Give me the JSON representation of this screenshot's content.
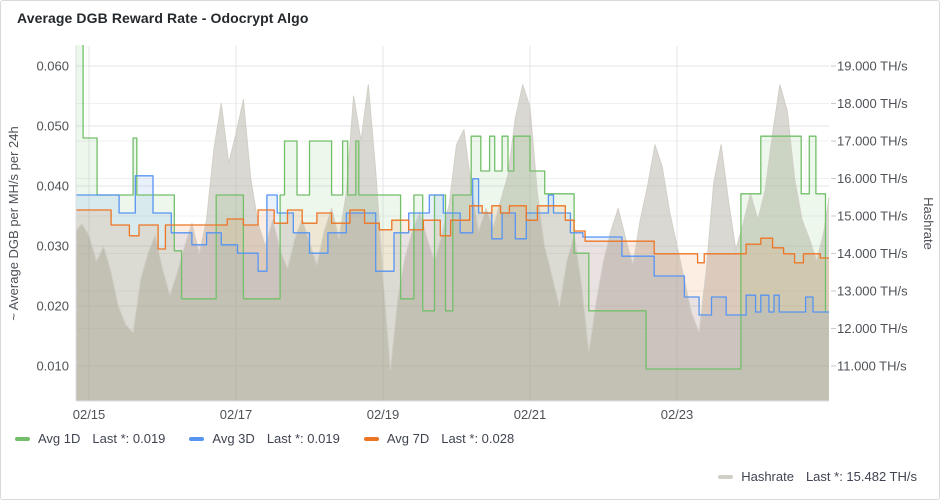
{
  "panel": {
    "title": "Average DGB Reward Rate - Odocrypt Algo"
  },
  "chart_data": {
    "type": "line",
    "title": "Average DGB Reward Rate - Odocrypt Algo",
    "grid": true,
    "legend_position": "bottom",
    "x_axis": {
      "unit": "days since 02/15",
      "range": [
        -0.177,
        10.068
      ],
      "ticks": [
        {
          "t": 0,
          "label": "02/15"
        },
        {
          "t": 2,
          "label": "02/17"
        },
        {
          "t": 4,
          "label": "02/19"
        },
        {
          "t": 6,
          "label": "02/21"
        },
        {
          "t": 8,
          "label": "02/23"
        }
      ]
    },
    "y_left": {
      "label": "~ Average DGB per MH/s per 24h",
      "range": [
        0.00417,
        0.06333
      ],
      "ticks": [
        {
          "v": 0.06,
          "label": "0.060"
        },
        {
          "v": 0.05,
          "label": "0.050"
        },
        {
          "v": 0.04,
          "label": "0.040"
        },
        {
          "v": 0.03,
          "label": "0.030"
        },
        {
          "v": 0.02,
          "label": "0.020"
        },
        {
          "v": 0.01,
          "label": "0.010"
        }
      ]
    },
    "y_right": {
      "label": "Hashrate",
      "range": [
        10.067,
        19.533
      ],
      "ticks": [
        {
          "v": 19,
          "label": "19.000 TH/s"
        },
        {
          "v": 18,
          "label": "18.000 TH/s"
        },
        {
          "v": 17,
          "label": "17.000 TH/s"
        },
        {
          "v": 16,
          "label": "16.000 TH/s"
        },
        {
          "v": 15,
          "label": "15.000 TH/s"
        },
        {
          "v": 14,
          "label": "14.000 TH/s"
        },
        {
          "v": 13,
          "label": "13.000 TH/s"
        },
        {
          "v": 12,
          "label": "12.000 TH/s"
        },
        {
          "v": 11,
          "label": "11.000 TH/s"
        }
      ]
    },
    "series": [
      {
        "name": "Hashrate",
        "last_label": "Last *: 15.482 TH/s",
        "last_value": 15.482,
        "color": "#d2cfc7",
        "fill": "#b6b2a6",
        "fill_opacity": 0.5,
        "axis": "right",
        "mode": "linear",
        "points": [
          [
            -0.18,
            14.6
          ],
          [
            -0.1,
            14.8
          ],
          [
            0,
            14.5
          ],
          [
            0.1,
            13.8
          ],
          [
            0.2,
            14.2
          ],
          [
            0.3,
            13.5
          ],
          [
            0.4,
            12.6
          ],
          [
            0.5,
            12.1
          ],
          [
            0.6,
            11.9
          ],
          [
            0.7,
            13.3
          ],
          [
            0.8,
            14.0
          ],
          [
            0.9,
            14.5
          ],
          [
            1.0,
            13.6
          ],
          [
            1.1,
            12.9
          ],
          [
            1.2,
            13.5
          ],
          [
            1.3,
            14.2
          ],
          [
            1.4,
            14.8
          ],
          [
            1.5,
            14.0
          ],
          [
            1.6,
            14.9
          ],
          [
            1.7,
            16.8
          ],
          [
            1.8,
            18.0
          ],
          [
            1.9,
            16.4
          ],
          [
            2.0,
            17.2
          ],
          [
            2.1,
            18.1
          ],
          [
            2.2,
            16.0
          ],
          [
            2.3,
            14.8
          ],
          [
            2.4,
            14.2
          ],
          [
            2.5,
            14.9
          ],
          [
            2.6,
            14.1
          ],
          [
            2.7,
            13.6
          ],
          [
            2.8,
            14.4
          ],
          [
            2.9,
            14.9
          ],
          [
            3.0,
            14.3
          ],
          [
            3.1,
            13.7
          ],
          [
            3.2,
            14.6
          ],
          [
            3.3,
            15.2
          ],
          [
            3.4,
            14.4
          ],
          [
            3.5,
            15.6
          ],
          [
            3.6,
            18.2
          ],
          [
            3.7,
            17.0
          ],
          [
            3.8,
            18.5
          ],
          [
            3.9,
            16.2
          ],
          [
            4.0,
            13.4
          ],
          [
            4.1,
            10.9
          ],
          [
            4.2,
            12.8
          ],
          [
            4.3,
            13.9
          ],
          [
            4.4,
            14.6
          ],
          [
            4.5,
            15.1
          ],
          [
            4.6,
            14.4
          ],
          [
            4.7,
            13.8
          ],
          [
            4.8,
            14.5
          ],
          [
            4.9,
            15.3
          ],
          [
            5.0,
            16.9
          ],
          [
            5.1,
            17.3
          ],
          [
            5.2,
            15.8
          ],
          [
            5.3,
            14.6
          ],
          [
            5.4,
            15.2
          ],
          [
            5.5,
            14.7
          ],
          [
            5.6,
            15.4
          ],
          [
            5.7,
            16.1
          ],
          [
            5.8,
            17.6
          ],
          [
            5.9,
            18.5
          ],
          [
            6.0,
            17.9
          ],
          [
            6.1,
            15.6
          ],
          [
            6.2,
            14.2
          ],
          [
            6.3,
            13.4
          ],
          [
            6.4,
            12.6
          ],
          [
            6.5,
            13.8
          ],
          [
            6.6,
            14.5
          ],
          [
            6.7,
            13.2
          ],
          [
            6.8,
            11.4
          ],
          [
            6.9,
            12.7
          ],
          [
            7.0,
            13.8
          ],
          [
            7.1,
            14.6
          ],
          [
            7.2,
            15.2
          ],
          [
            7.3,
            14.4
          ],
          [
            7.4,
            13.7
          ],
          [
            7.5,
            14.9
          ],
          [
            7.6,
            15.8
          ],
          [
            7.7,
            16.9
          ],
          [
            7.8,
            16.3
          ],
          [
            7.9,
            15.1
          ],
          [
            8.0,
            14.2
          ],
          [
            8.1,
            13.3
          ],
          [
            8.2,
            12.4
          ],
          [
            8.3,
            11.9
          ],
          [
            8.4,
            13.6
          ],
          [
            8.5,
            15.9
          ],
          [
            8.6,
            16.9
          ],
          [
            8.7,
            15.4
          ],
          [
            8.8,
            14.1
          ],
          [
            8.9,
            14.8
          ],
          [
            9.0,
            15.6
          ],
          [
            9.1,
            14.9
          ],
          [
            9.2,
            15.7
          ],
          [
            9.3,
            17.2
          ],
          [
            9.4,
            18.5
          ],
          [
            9.5,
            17.8
          ],
          [
            9.6,
            16.0
          ],
          [
            9.7,
            14.9
          ],
          [
            9.8,
            14.4
          ],
          [
            9.9,
            13.8
          ],
          [
            10.0,
            14.6
          ],
          [
            10.07,
            15.482
          ]
        ]
      },
      {
        "name": "Avg 1D",
        "last_label": "Last *: 0.019",
        "last_value": 0.019,
        "color": "#73BF69",
        "fill": "#73BF69",
        "fill_opacity": 0.13,
        "axis": "left",
        "mode": "step",
        "points": [
          [
            -0.18,
            0.0665
          ],
          [
            -0.08,
            0.048
          ],
          [
            0.11,
            0.0385
          ],
          [
            0.6,
            0.048
          ],
          [
            0.65,
            0.0385
          ],
          [
            1.16,
            0.0292
          ],
          [
            1.26,
            0.0212
          ],
          [
            1.73,
            0.0385
          ],
          [
            2.1,
            0.0212
          ],
          [
            2.6,
            0.0385
          ],
          [
            2.66,
            0.0475
          ],
          [
            2.83,
            0.0385
          ],
          [
            3.0,
            0.0475
          ],
          [
            3.3,
            0.0385
          ],
          [
            3.45,
            0.0475
          ],
          [
            3.52,
            0.0385
          ],
          [
            3.63,
            0.0475
          ],
          [
            3.67,
            0.0385
          ],
          [
            4.24,
            0.0212
          ],
          [
            4.42,
            0.0385
          ],
          [
            4.54,
            0.0192
          ],
          [
            4.7,
            0.0385
          ],
          [
            4.85,
            0.0192
          ],
          [
            4.95,
            0.0385
          ],
          [
            5.2,
            0.0483
          ],
          [
            5.33,
            0.0425
          ],
          [
            5.45,
            0.0483
          ],
          [
            5.52,
            0.0425
          ],
          [
            5.62,
            0.0483
          ],
          [
            5.7,
            0.0425
          ],
          [
            5.78,
            0.0483
          ],
          [
            6.0,
            0.0425
          ],
          [
            6.2,
            0.0387
          ],
          [
            6.6,
            0.0288
          ],
          [
            6.8,
            0.0192
          ],
          [
            7.58,
            0.0095
          ],
          [
            8.87,
            0.0387
          ],
          [
            9.14,
            0.0483
          ],
          [
            9.69,
            0.0387
          ],
          [
            9.8,
            0.0483
          ],
          [
            9.89,
            0.0387
          ],
          [
            10.02,
            0.019
          ]
        ]
      },
      {
        "name": "Avg 3D",
        "last_label": "Last *: 0.019",
        "last_value": 0.019,
        "color": "#5794F2",
        "fill": "#5794F2",
        "fill_opacity": 0.13,
        "axis": "left",
        "mode": "step",
        "points": [
          [
            -0.18,
            0.0385
          ],
          [
            0.41,
            0.0355
          ],
          [
            0.63,
            0.0417
          ],
          [
            0.87,
            0.0355
          ],
          [
            1.12,
            0.0322
          ],
          [
            1.4,
            0.0302
          ],
          [
            1.6,
            0.0322
          ],
          [
            1.8,
            0.0302
          ],
          [
            2.02,
            0.0288
          ],
          [
            2.3,
            0.0258
          ],
          [
            2.42,
            0.0385
          ],
          [
            2.56,
            0.0355
          ],
          [
            2.78,
            0.0322
          ],
          [
            3.0,
            0.0288
          ],
          [
            3.25,
            0.0322
          ],
          [
            3.5,
            0.0355
          ],
          [
            3.9,
            0.0258
          ],
          [
            4.15,
            0.0322
          ],
          [
            4.35,
            0.0355
          ],
          [
            4.63,
            0.0385
          ],
          [
            4.82,
            0.0355
          ],
          [
            5.05,
            0.0322
          ],
          [
            5.22,
            0.0412
          ],
          [
            5.3,
            0.0355
          ],
          [
            5.48,
            0.0312
          ],
          [
            5.62,
            0.0355
          ],
          [
            5.8,
            0.0312
          ],
          [
            5.95,
            0.0355
          ],
          [
            6.25,
            0.0385
          ],
          [
            6.32,
            0.0355
          ],
          [
            6.55,
            0.0322
          ],
          [
            6.72,
            0.0315
          ],
          [
            7.25,
            0.0283
          ],
          [
            7.69,
            0.025
          ],
          [
            8.1,
            0.0215
          ],
          [
            8.3,
            0.0185
          ],
          [
            8.47,
            0.0215
          ],
          [
            8.67,
            0.0185
          ],
          [
            8.94,
            0.0218
          ],
          [
            9.07,
            0.019
          ],
          [
            9.14,
            0.0218
          ],
          [
            9.25,
            0.019
          ],
          [
            9.32,
            0.0218
          ],
          [
            9.39,
            0.019
          ],
          [
            9.75,
            0.0215
          ],
          [
            9.85,
            0.019
          ]
        ]
      },
      {
        "name": "Avg 7D",
        "last_label": "Last *: 0.028",
        "last_value": 0.028,
        "color": "#ED7524",
        "fill": "#ED7524",
        "fill_opacity": 0.12,
        "axis": "left",
        "mode": "step",
        "points": [
          [
            -0.18,
            0.036
          ],
          [
            0.3,
            0.0335
          ],
          [
            0.55,
            0.0317
          ],
          [
            0.68,
            0.0335
          ],
          [
            0.94,
            0.0295
          ],
          [
            1.04,
            0.0335
          ],
          [
            1.88,
            0.0345
          ],
          [
            2.1,
            0.0335
          ],
          [
            2.3,
            0.036
          ],
          [
            2.52,
            0.0338
          ],
          [
            2.7,
            0.036
          ],
          [
            2.9,
            0.0338
          ],
          [
            3.1,
            0.0355
          ],
          [
            3.3,
            0.0338
          ],
          [
            3.55,
            0.036
          ],
          [
            3.75,
            0.0338
          ],
          [
            3.95,
            0.0327
          ],
          [
            4.12,
            0.0343
          ],
          [
            4.35,
            0.0327
          ],
          [
            4.55,
            0.0343
          ],
          [
            4.78,
            0.0317
          ],
          [
            4.92,
            0.0343
          ],
          [
            5.18,
            0.0367
          ],
          [
            5.35,
            0.0355
          ],
          [
            5.48,
            0.0367
          ],
          [
            5.6,
            0.0355
          ],
          [
            5.72,
            0.0367
          ],
          [
            5.95,
            0.0343
          ],
          [
            6.1,
            0.0367
          ],
          [
            6.48,
            0.0343
          ],
          [
            6.6,
            0.0325
          ],
          [
            6.75,
            0.0308
          ],
          [
            7.69,
            0.0287
          ],
          [
            8.28,
            0.0272
          ],
          [
            8.37,
            0.0287
          ],
          [
            8.94,
            0.0303
          ],
          [
            9.14,
            0.0313
          ],
          [
            9.3,
            0.0297
          ],
          [
            9.45,
            0.0287
          ],
          [
            9.6,
            0.0272
          ],
          [
            9.72,
            0.0287
          ],
          [
            9.95,
            0.028
          ]
        ]
      }
    ],
    "colors": {
      "grid_major": "#e4e5e7",
      "grid_minor": "#f0f0f1",
      "axis_text": "#4e5257",
      "axis_border": "#dddee0"
    }
  }
}
